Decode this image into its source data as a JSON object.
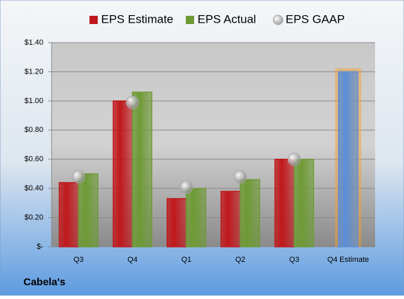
{
  "chart_data": {
    "type": "bar",
    "caption": "Cabela's",
    "categories": [
      "Q3",
      "Q4",
      "Q1",
      "Q2",
      "Q3",
      "Q4 Estimate"
    ],
    "series": [
      {
        "name": "EPS Estimate",
        "color": "#c0181c",
        "values": [
          0.44,
          1.0,
          0.33,
          0.38,
          0.6,
          1.2
        ],
        "highlight_color": "#5b8ed6",
        "glow_color": "#f5a030"
      },
      {
        "name": "EPS Actual",
        "color": "#6e9a35",
        "values": [
          0.5,
          1.06,
          0.4,
          0.46,
          0.6,
          null
        ]
      },
      {
        "name": "EPS GAAP",
        "color": "#a8a8a8",
        "type": "scatter",
        "values": [
          0.48,
          0.99,
          0.41,
          0.48,
          0.6,
          null
        ]
      }
    ],
    "ylim": [
      0,
      1.4
    ],
    "yticks": [
      {
        "value": 0,
        "label": "$-"
      },
      {
        "value": 0.2,
        "label": "$0.20"
      },
      {
        "value": 0.4,
        "label": "$0.40"
      },
      {
        "value": 0.6,
        "label": "$0.60"
      },
      {
        "value": 0.8,
        "label": "$0.80"
      },
      {
        "value": 1.0,
        "label": "$1.00"
      },
      {
        "value": 1.2,
        "label": "$1.20"
      },
      {
        "value": 1.4,
        "label": "$1.40"
      }
    ],
    "grid": true
  }
}
